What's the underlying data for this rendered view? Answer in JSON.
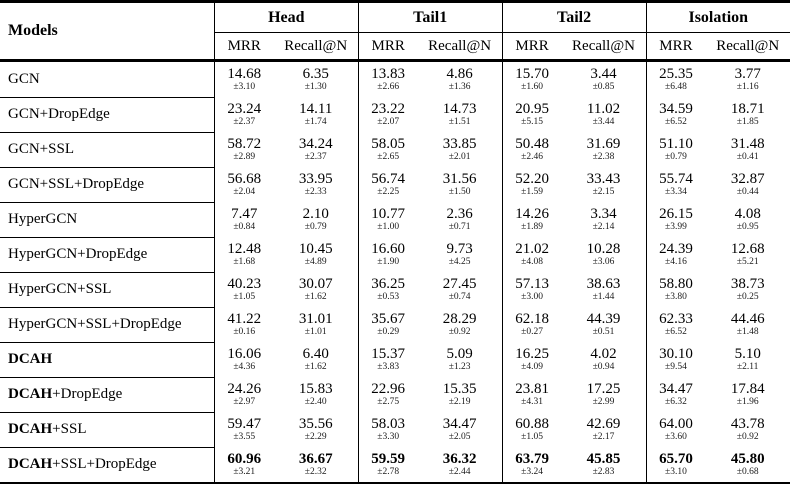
{
  "table": {
    "title_column": "Models",
    "groups": [
      {
        "label": "Head",
        "sub": [
          "MRR",
          "Recall@N"
        ]
      },
      {
        "label": "Tail1",
        "sub": [
          "MRR",
          "Recall@N"
        ]
      },
      {
        "label": "Tail2",
        "sub": [
          "MRR",
          "Recall@N"
        ]
      },
      {
        "label": "Isolation",
        "sub": [
          "MRR",
          "Recall@N"
        ]
      }
    ],
    "rows": [
      {
        "model_bold": "",
        "model_rest": "GCN",
        "emphasis": false,
        "cells": [
          {
            "v": "14.68",
            "s": "±3.10"
          },
          {
            "v": "6.35",
            "s": "±1.30"
          },
          {
            "v": "13.83",
            "s": "±2.66"
          },
          {
            "v": "4.86",
            "s": "±1.36"
          },
          {
            "v": "15.70",
            "s": "±1.60"
          },
          {
            "v": "3.44",
            "s": "±0.85"
          },
          {
            "v": "25.35",
            "s": "±6.48"
          },
          {
            "v": "3.77",
            "s": "±1.16"
          }
        ]
      },
      {
        "model_bold": "",
        "model_rest": "GCN+DropEdge",
        "emphasis": false,
        "cells": [
          {
            "v": "23.24",
            "s": "±2.37"
          },
          {
            "v": "14.11",
            "s": "±1.74"
          },
          {
            "v": "23.22",
            "s": "±2.07"
          },
          {
            "v": "14.73",
            "s": "±1.51"
          },
          {
            "v": "20.95",
            "s": "±5.15"
          },
          {
            "v": "11.02",
            "s": "±3.44"
          },
          {
            "v": "34.59",
            "s": "±6.52"
          },
          {
            "v": "18.71",
            "s": "±1.85"
          }
        ]
      },
      {
        "model_bold": "",
        "model_rest": "GCN+SSL",
        "emphasis": false,
        "cells": [
          {
            "v": "58.72",
            "s": "±2.89"
          },
          {
            "v": "34.24",
            "s": "±2.37"
          },
          {
            "v": "58.05",
            "s": "±2.65"
          },
          {
            "v": "33.85",
            "s": "±2.01"
          },
          {
            "v": "50.48",
            "s": "±2.46"
          },
          {
            "v": "31.69",
            "s": "±2.38"
          },
          {
            "v": "51.10",
            "s": "±0.79"
          },
          {
            "v": "31.48",
            "s": "±0.41"
          }
        ]
      },
      {
        "model_bold": "",
        "model_rest": "GCN+SSL+DropEdge",
        "emphasis": false,
        "cells": [
          {
            "v": "56.68",
            "s": "±2.04"
          },
          {
            "v": "33.95",
            "s": "±2.33"
          },
          {
            "v": "56.74",
            "s": "±2.25"
          },
          {
            "v": "31.56",
            "s": "±1.50"
          },
          {
            "v": "52.20",
            "s": "±1.59"
          },
          {
            "v": "33.43",
            "s": "±2.15"
          },
          {
            "v": "55.74",
            "s": "±3.34"
          },
          {
            "v": "32.87",
            "s": "±0.44"
          }
        ]
      },
      {
        "model_bold": "",
        "model_rest": "HyperGCN",
        "emphasis": false,
        "cells": [
          {
            "v": "7.47",
            "s": "±0.84"
          },
          {
            "v": "2.10",
            "s": "±0.79"
          },
          {
            "v": "10.77",
            "s": "±1.00"
          },
          {
            "v": "2.36",
            "s": "±0.71"
          },
          {
            "v": "14.26",
            "s": "±1.89"
          },
          {
            "v": "3.34",
            "s": "±2.14"
          },
          {
            "v": "26.15",
            "s": "±3.99"
          },
          {
            "v": "4.08",
            "s": "±0.95"
          }
        ]
      },
      {
        "model_bold": "",
        "model_rest": "HyperGCN+DropEdge",
        "emphasis": false,
        "cells": [
          {
            "v": "12.48",
            "s": "±1.68"
          },
          {
            "v": "10.45",
            "s": "±4.89"
          },
          {
            "v": "16.60",
            "s": "±1.90"
          },
          {
            "v": "9.73",
            "s": "±4.25"
          },
          {
            "v": "21.02",
            "s": "±4.08"
          },
          {
            "v": "10.28",
            "s": "±3.06"
          },
          {
            "v": "24.39",
            "s": "±4.16"
          },
          {
            "v": "12.68",
            "s": "±5.21"
          }
        ]
      },
      {
        "model_bold": "",
        "model_rest": "HyperGCN+SSL",
        "emphasis": false,
        "cells": [
          {
            "v": "40.23",
            "s": "±1.05"
          },
          {
            "v": "30.07",
            "s": "±1.62"
          },
          {
            "v": "36.25",
            "s": "±0.53"
          },
          {
            "v": "27.45",
            "s": "±0.74"
          },
          {
            "v": "57.13",
            "s": "±3.00"
          },
          {
            "v": "38.63",
            "s": "±1.44"
          },
          {
            "v": "58.80",
            "s": "±3.80"
          },
          {
            "v": "38.73",
            "s": "±0.25"
          }
        ]
      },
      {
        "model_bold": "",
        "model_rest": "HyperGCN+SSL+DropEdge",
        "emphasis": false,
        "cells": [
          {
            "v": "41.22",
            "s": "±0.16"
          },
          {
            "v": "31.01",
            "s": "±1.01"
          },
          {
            "v": "35.67",
            "s": "±0.29"
          },
          {
            "v": "28.29",
            "s": "±0.92"
          },
          {
            "v": "62.18",
            "s": "±0.27"
          },
          {
            "v": "44.39",
            "s": "±0.51"
          },
          {
            "v": "62.33",
            "s": "±6.52"
          },
          {
            "v": "44.46",
            "s": "±1.48"
          }
        ]
      },
      {
        "model_bold": "DCAH",
        "model_rest": "",
        "emphasis": false,
        "cells": [
          {
            "v": "16.06",
            "s": "±4.36"
          },
          {
            "v": "6.40",
            "s": "±1.62"
          },
          {
            "v": "15.37",
            "s": "±3.83"
          },
          {
            "v": "5.09",
            "s": "±1.23"
          },
          {
            "v": "16.25",
            "s": "±4.09"
          },
          {
            "v": "4.02",
            "s": "±0.94"
          },
          {
            "v": "30.10",
            "s": "±9.54"
          },
          {
            "v": "5.10",
            "s": "±2.11"
          }
        ]
      },
      {
        "model_bold": "DCAH",
        "model_rest": "+DropEdge",
        "emphasis": false,
        "cells": [
          {
            "v": "24.26",
            "s": "±2.97"
          },
          {
            "v": "15.83",
            "s": "±2.40"
          },
          {
            "v": "22.96",
            "s": "±2.75"
          },
          {
            "v": "15.35",
            "s": "±2.19"
          },
          {
            "v": "23.81",
            "s": "±4.31"
          },
          {
            "v": "17.25",
            "s": "±2.99"
          },
          {
            "v": "34.47",
            "s": "±6.32"
          },
          {
            "v": "17.84",
            "s": "±1.96"
          }
        ]
      },
      {
        "model_bold": "DCAH",
        "model_rest": "+SSL",
        "emphasis": false,
        "cells": [
          {
            "v": "59.47",
            "s": "±3.55"
          },
          {
            "v": "35.56",
            "s": "±2.29"
          },
          {
            "v": "58.03",
            "s": "±3.30"
          },
          {
            "v": "34.47",
            "s": "±2.05"
          },
          {
            "v": "60.88",
            "s": "±1.05"
          },
          {
            "v": "42.69",
            "s": "±2.17"
          },
          {
            "v": "64.00",
            "s": "±3.60"
          },
          {
            "v": "43.78",
            "s": "±0.92"
          }
        ]
      },
      {
        "model_bold": "DCAH",
        "model_rest": "+SSL+DropEdge",
        "emphasis": true,
        "cells": [
          {
            "v": "60.96",
            "s": "±3.21"
          },
          {
            "v": "36.67",
            "s": "±2.32"
          },
          {
            "v": "59.59",
            "s": "±2.78"
          },
          {
            "v": "36.32",
            "s": "±2.44"
          },
          {
            "v": "63.79",
            "s": "±3.24"
          },
          {
            "v": "45.85",
            "s": "±2.83"
          },
          {
            "v": "65.70",
            "s": "±3.10"
          },
          {
            "v": "45.80",
            "s": "±0.68"
          }
        ]
      }
    ]
  }
}
